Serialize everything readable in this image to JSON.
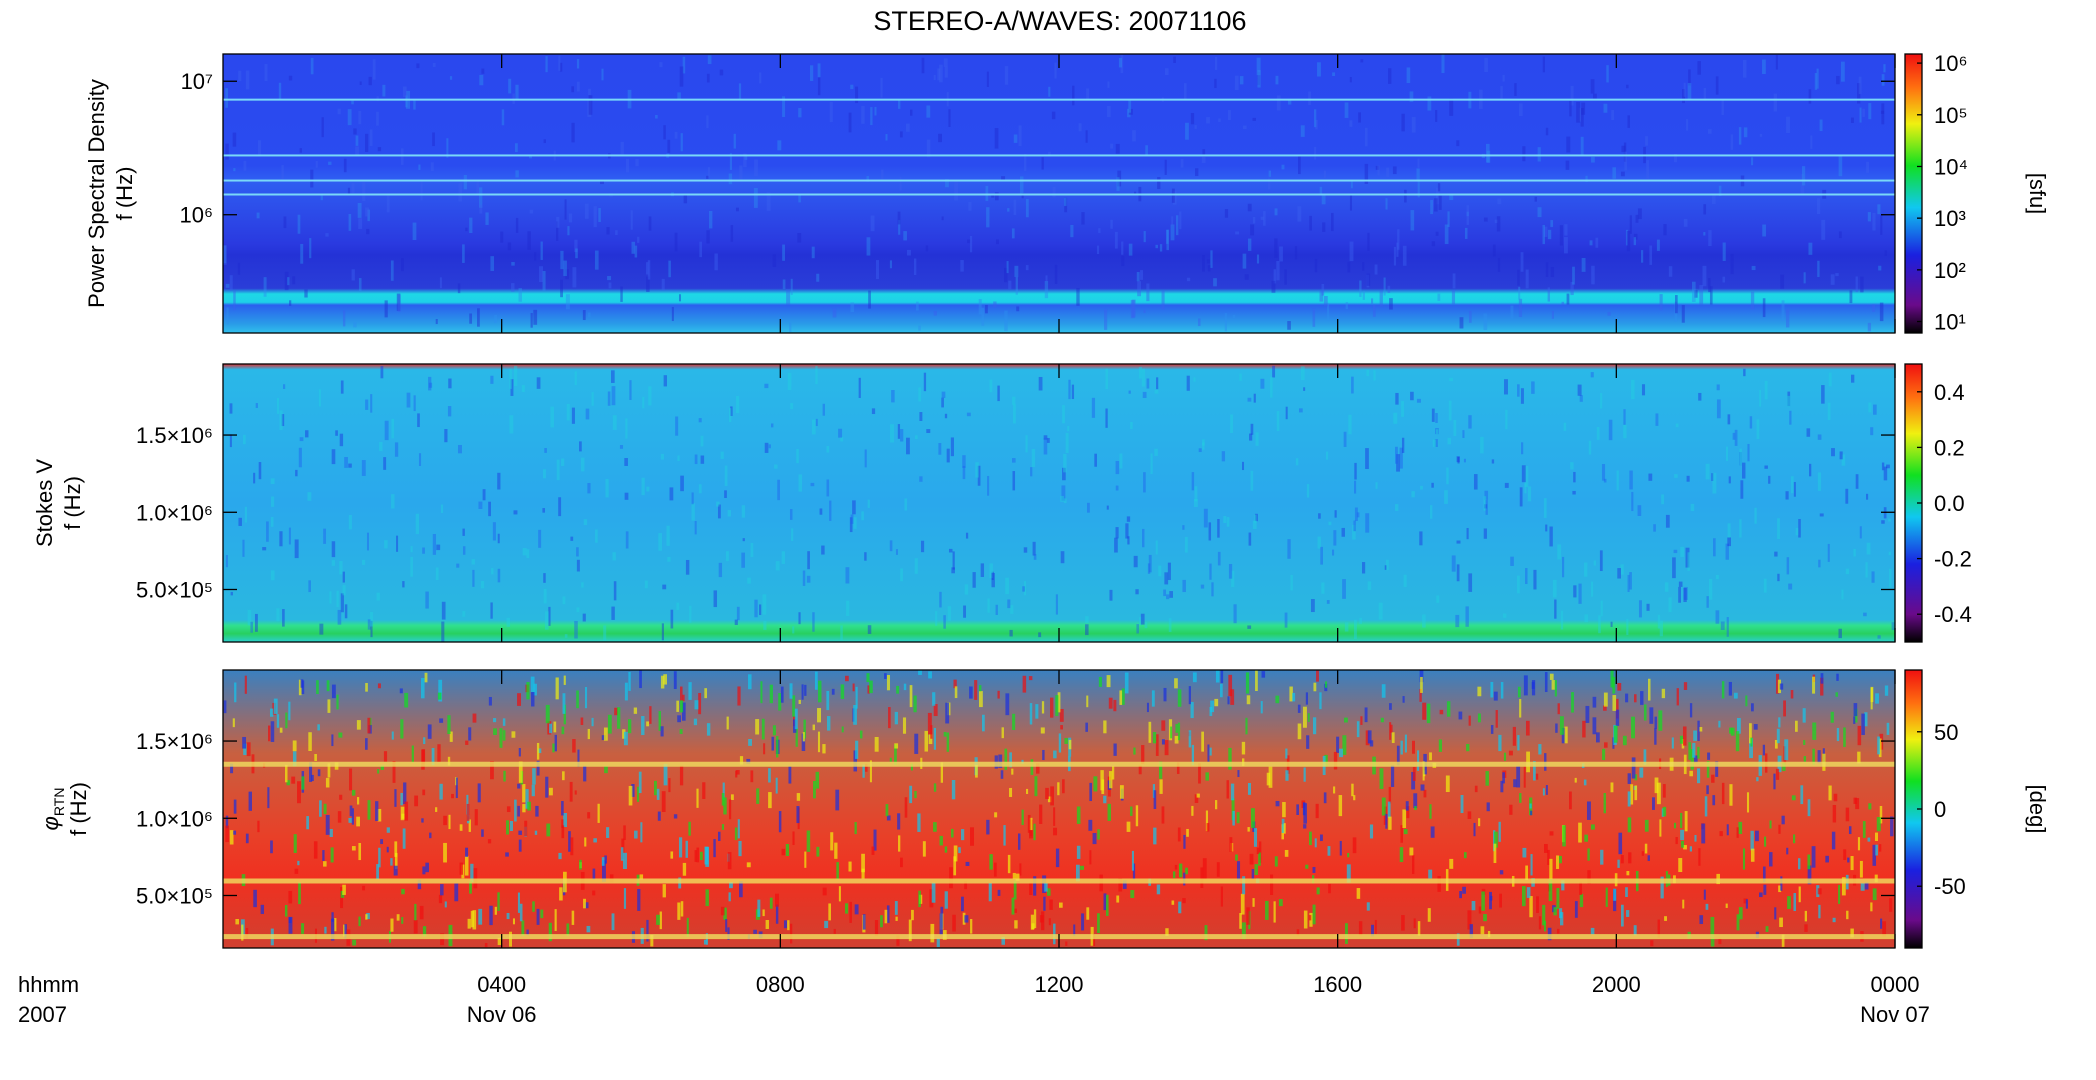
{
  "chart_data": [
    {
      "type": "heatmap",
      "title": "STEREO-A/WAVES: 20071106",
      "ylabel": [
        "Power Spectral Density",
        "f (Hz)"
      ],
      "ylog": true,
      "ylim": [
        130000,
        16000000
      ],
      "yticks": [
        {
          "value": 1000000,
          "label": "10⁶"
        },
        {
          "value": 10000000,
          "label": "10⁷"
        }
      ],
      "xlim": [
        0,
        24
      ],
      "clog": true,
      "clim": [
        6,
        1500000
      ],
      "clabel": "[sfu]",
      "cticks": [
        {
          "value": 10,
          "label": "10¹"
        },
        {
          "value": 100,
          "label": "10²"
        },
        {
          "value": 1000,
          "label": "10³"
        },
        {
          "value": 10000,
          "label": "10⁴"
        },
        {
          "value": 100000,
          "label": "10⁵"
        },
        {
          "value": 1000000,
          "label": "10⁶"
        }
      ]
    },
    {
      "type": "heatmap",
      "ylabel": [
        "Stokes V",
        "f (Hz)"
      ],
      "ylog": false,
      "ylim": [
        160000,
        1960000
      ],
      "yticks": [
        {
          "value": 500000,
          "label": "5.0×10⁵"
        },
        {
          "value": 1000000,
          "label": "1.0×10⁶"
        },
        {
          "value": 1500000,
          "label": "1.5×10⁶"
        }
      ],
      "xlim": [
        0,
        24
      ],
      "clog": false,
      "clim": [
        -0.5,
        0.5
      ],
      "cticks": [
        -0.4,
        -0.2,
        {
          "value": 0,
          "label": "0.0"
        },
        0.2,
        0.4
      ]
    },
    {
      "type": "heatmap",
      "ylabel_symbol": "φ",
      "ylabel_subscript": "RTN",
      "ylabel": [
        "f (Hz)"
      ],
      "ylog": false,
      "ylim": [
        160000,
        1960000
      ],
      "yticks": [
        {
          "value": 500000,
          "label": "5.0×10⁵"
        },
        {
          "value": 1000000,
          "label": "1.0×10⁶"
        },
        {
          "value": 1500000,
          "label": "1.5×10⁶"
        }
      ],
      "xlim": [
        0,
        24
      ],
      "xlabel": [
        "hhmm",
        "2007"
      ],
      "xticks": [
        {
          "value": 4,
          "label": "0400"
        },
        {
          "value": 8,
          "label": "0800"
        },
        {
          "value": 12,
          "label": "1200"
        },
        {
          "value": 16,
          "label": "1600"
        },
        {
          "value": 20,
          "label": "2000"
        },
        {
          "value": 24,
          "label": "0000"
        }
      ],
      "xdates": [
        {
          "value": 4,
          "label": "Nov 06"
        },
        {
          "value": 24,
          "label": "Nov 07"
        }
      ],
      "clog": false,
      "clim": [
        -90,
        90
      ],
      "clabel": "[deg]",
      "cticks": [
        -50,
        0,
        50
      ]
    }
  ]
}
